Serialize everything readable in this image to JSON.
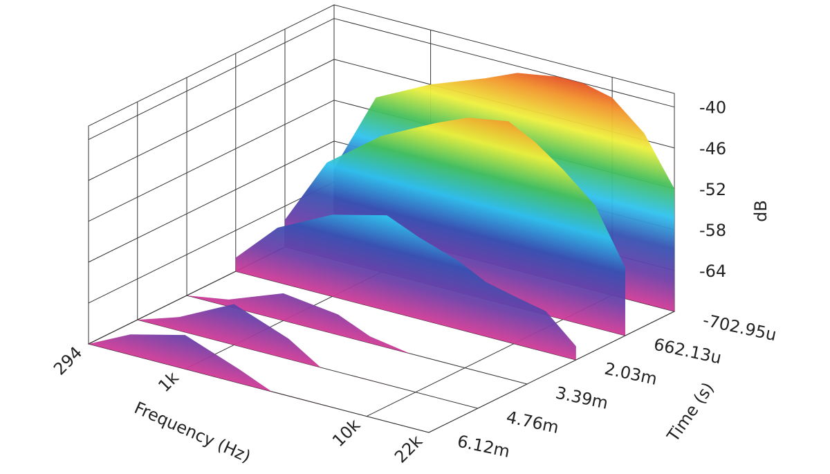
{
  "chart_data": {
    "type": "waterfall3d",
    "xlabel": "Frequency (Hz)",
    "ylabel": "Time (s)",
    "zlabel": "dB",
    "xscale": "log",
    "xlim": [
      294,
      22000
    ],
    "xticks": [
      294,
      {
        "value": 1000,
        "label": "1k"
      },
      {
        "value": 10000,
        "label": "10k"
      },
      {
        "value": 22000,
        "label": "22k"
      }
    ],
    "ylim": [
      -0.00070295,
      0.00612
    ],
    "yticks": [
      {
        "value": -0.00070295,
        "label": "-702.95u"
      },
      {
        "value": 0.00066213,
        "label": "662.13u"
      },
      {
        "value": 0.00203,
        "label": "2.03m"
      },
      {
        "value": 0.00339,
        "label": "3.39m"
      },
      {
        "value": 0.00476,
        "label": "4.76m"
      },
      {
        "value": 0.00612,
        "label": "6.12m"
      }
    ],
    "zlim": [
      -70,
      -38
    ],
    "zticks": [
      -40,
      -46,
      -52,
      -58,
      -64
    ],
    "frequencies": [
      294,
      500,
      1000,
      2000,
      3000,
      5000,
      7000,
      10000,
      15000,
      22000
    ],
    "series": [
      {
        "y": -0.00070295,
        "values": [
          -62,
          -50,
          -46,
          -43,
          -41,
          -40,
          -40,
          -41,
          -45,
          -52
        ]
      },
      {
        "y": 0.00066213,
        "values": [
          -66,
          -56,
          -50,
          -46,
          -44,
          -43,
          -45,
          -48,
          -52,
          -60
        ]
      },
      {
        "y": 0.00203,
        "values": [
          -68,
          -62,
          -58,
          -56,
          -58,
          -60,
          -62,
          -63,
          -64,
          -68
        ]
      },
      {
        "y": 0.00339,
        "values": [
          -70,
          -69,
          -66,
          -67,
          -69,
          -70,
          -70,
          -70,
          -70,
          -70
        ]
      },
      {
        "y": 0.00476,
        "values": [
          -70,
          -68,
          -64,
          -67,
          -70,
          -70,
          -70,
          -70,
          -70,
          -70
        ]
      },
      {
        "y": 0.00612,
        "values": [
          -70,
          -67,
          -65,
          -68,
          -70,
          -70,
          -70,
          -70,
          -70,
          -70
        ]
      }
    ],
    "colors": [
      "#d23a96",
      "#6b3fa8",
      "#3552b2",
      "#2fc2ee",
      "#45bf5a",
      "#eef03c",
      "#f2922a",
      "#d91f1f"
    ],
    "floor_color": "#9b9b9b",
    "wall_color": "#ffffff",
    "grid": true
  }
}
